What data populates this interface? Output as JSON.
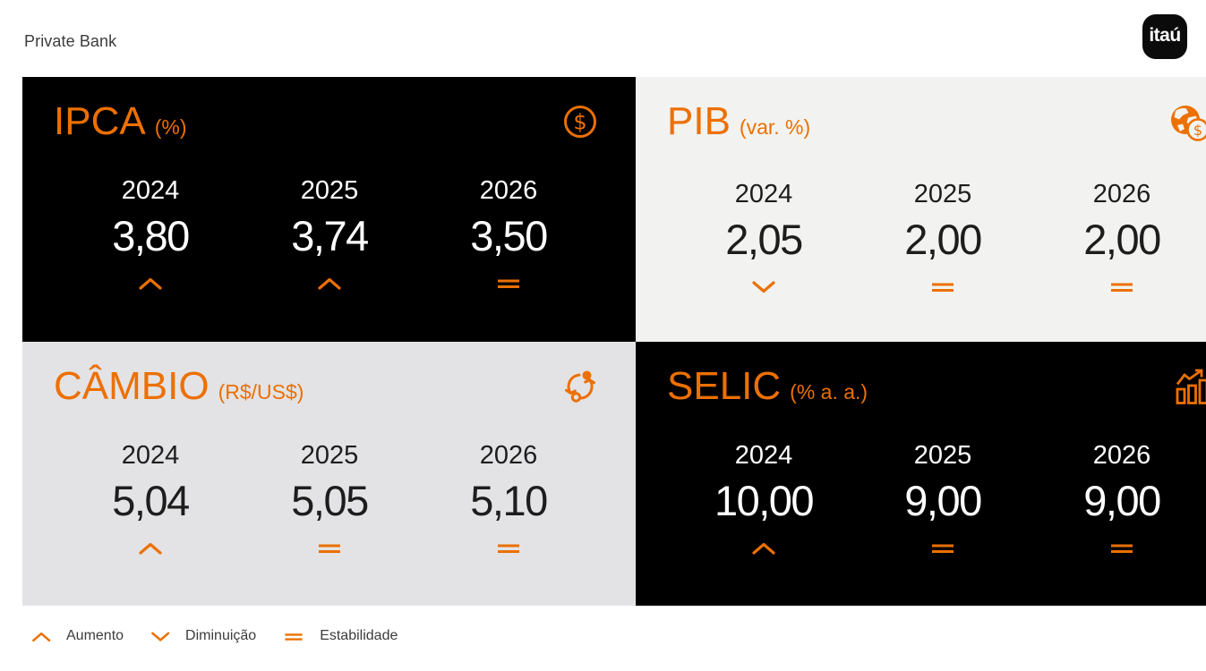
{
  "header": {
    "brand": "Private Bank",
    "logo_text": "itaú"
  },
  "colors": {
    "accent": "#EC7000",
    "dark_card_bg": "#000000",
    "pib_card_bg": "#F2F2F0",
    "cambio_card_bg": "#E3E3E6",
    "dark_card_text": "#FFFFFF",
    "light_card_text": "#1D1D1D"
  },
  "cards": [
    {
      "title": "IPCA",
      "unit": "(%)",
      "icon": "coin-icon",
      "theme": "dark",
      "cells": [
        {
          "year": "2024",
          "value": "3,80",
          "trend": "up"
        },
        {
          "year": "2025",
          "value": "3,74",
          "trend": "up"
        },
        {
          "year": "2026",
          "value": "3,50",
          "trend": "equal"
        }
      ]
    },
    {
      "title": "PIB",
      "unit": "(var. %)",
      "icon": "globe-coin-icon",
      "theme": "light-a",
      "cells": [
        {
          "year": "2024",
          "value": "2,05",
          "trend": "down"
        },
        {
          "year": "2025",
          "value": "2,00",
          "trend": "equal"
        },
        {
          "year": "2026",
          "value": "2,00",
          "trend": "equal"
        }
      ]
    },
    {
      "title": "CÂMBIO",
      "unit": "(R$/US$)",
      "icon": "exchange-icon",
      "theme": "light-b",
      "cells": [
        {
          "year": "2024",
          "value": "5,04",
          "trend": "up"
        },
        {
          "year": "2025",
          "value": "5,05",
          "trend": "equal"
        },
        {
          "year": "2026",
          "value": "5,10",
          "trend": "equal"
        }
      ]
    },
    {
      "title": "SELIC",
      "unit": "(% a. a.)",
      "icon": "bar-chart-icon",
      "theme": "dark",
      "cells": [
        {
          "year": "2024",
          "value": "10,00",
          "trend": "up"
        },
        {
          "year": "2025",
          "value": "9,00",
          "trend": "equal"
        },
        {
          "year": "2026",
          "value": "9,00",
          "trend": "equal"
        }
      ]
    }
  ],
  "legend": {
    "items": [
      {
        "symbol": "up",
        "label": "Aumento"
      },
      {
        "symbol": "down",
        "label": "Diminuição"
      },
      {
        "symbol": "equal",
        "label": "Estabilidade"
      }
    ]
  },
  "chart_data": {
    "type": "table",
    "categories": [
      "2024",
      "2025",
      "2026"
    ],
    "series": [
      {
        "name": "IPCA (%)",
        "values": [
          3.8,
          3.74,
          3.5
        ],
        "trends": [
          "up",
          "up",
          "equal"
        ]
      },
      {
        "name": "PIB (var. %)",
        "values": [
          2.05,
          2.0,
          2.0
        ],
        "trends": [
          "down",
          "equal",
          "equal"
        ]
      },
      {
        "name": "CÂMBIO (R$/US$)",
        "values": [
          5.04,
          5.05,
          5.1
        ],
        "trends": [
          "up",
          "equal",
          "equal"
        ]
      },
      {
        "name": "SELIC (% a. a.)",
        "values": [
          10.0,
          9.0,
          9.0
        ],
        "trends": [
          "up",
          "equal",
          "equal"
        ]
      }
    ],
    "legend": [
      "Aumento",
      "Diminuição",
      "Estabilidade"
    ]
  }
}
